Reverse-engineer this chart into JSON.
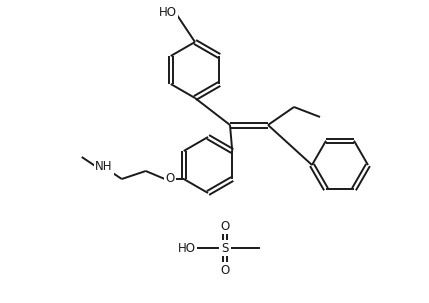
{
  "bg_color": "#ffffff",
  "line_color": "#1a1a1a",
  "line_width": 1.4,
  "font_size": 8.5,
  "fig_width": 4.29,
  "fig_height": 3.03,
  "dpi": 100,
  "xlim": [
    0,
    429
  ],
  "ylim": [
    303,
    0
  ]
}
